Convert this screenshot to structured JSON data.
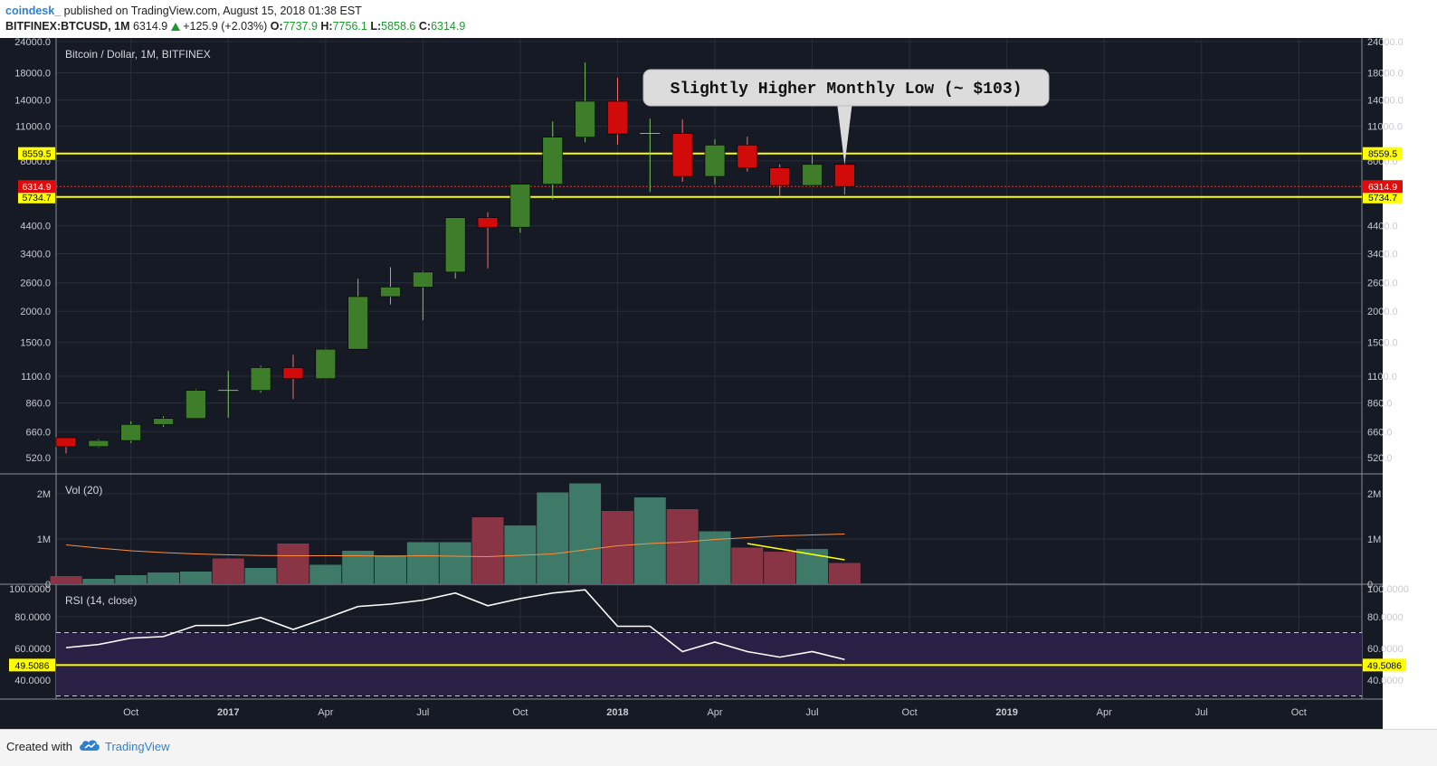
{
  "header": {
    "author": "coindesk_",
    "published": "published on TradingView.com, August 15, 2018 01:38 EST",
    "symbol": "BITFINEX:BTCUSD, 1M",
    "last": "6314.9",
    "change": "+125.9 (+2.03%)",
    "open_label": "O:",
    "open": "7737.9",
    "high_label": "H:",
    "high": "7756.1",
    "low_label": "L:",
    "low": "5858.6",
    "close_label": "C:",
    "close": "6314.9",
    "up_icon": "triangle-up-icon"
  },
  "footer": {
    "created_with": "Created with",
    "brand": "TradingView",
    "logo_icon": "tradingview-cloud-icon"
  },
  "colors": {
    "background": "#161a25",
    "grid": "#2a2e3a",
    "up": "#3e7d2a",
    "down": "#d10a0a",
    "vol_up": "#3e7a67",
    "vol_down": "#8a3545",
    "ma": "#ff8d3c",
    "level": "#ffff00",
    "rsi_line": "#ffffff",
    "rsi_band": "#2a1f45"
  },
  "chart_data": [
    {
      "type": "candlestick",
      "title": "Bitcoin / Dollar, 1M, BITFINEX",
      "scale": "log",
      "ylim": [
        470,
        24000
      ],
      "y_ticks": [
        "520.0",
        "660.0",
        "860.0",
        "1100.0",
        "1500.0",
        "2000.0",
        "2600.0",
        "3400.0",
        "4400.0",
        "5734.7",
        "6314.9",
        "8559.5",
        "11000.0",
        "14000.0",
        "18000.0",
        "24000.0"
      ],
      "plain_ticks": [
        520,
        660,
        860,
        1100,
        1500,
        2000,
        2600,
        3400,
        4400,
        8000,
        11000,
        14000,
        18000,
        24000
      ],
      "plain_tick_labels": [
        "520.0",
        "660.0",
        "860.0",
        "1100.0",
        "1500.0",
        "2000.0",
        "2600.0",
        "3400.0",
        "4400.0",
        "8000.0",
        "11000.0",
        "14000.0",
        "18000.0",
        "24000.0"
      ],
      "x_labels": [
        "Oct",
        "2017",
        "Apr",
        "Jul",
        "Oct",
        "2018",
        "Apr",
        "Jul",
        "Oct",
        "2019",
        "Apr",
        "Jul",
        "Oct"
      ],
      "x_label_months": [
        "2016-10",
        "2017-01",
        "2017-04",
        "2017-07",
        "2017-10",
        "2018-01",
        "2018-04",
        "2018-07",
        "2018-10",
        "2019-01",
        "2019-04",
        "2019-07",
        "2019-10"
      ],
      "x_bold": [
        "2017",
        "2018",
        "2019"
      ],
      "candles": [
        {
          "month": "2016-08",
          "o": 624,
          "h": 625,
          "l": 540,
          "c": 575
        },
        {
          "month": "2016-09",
          "o": 575,
          "h": 615,
          "l": 570,
          "c": 608
        },
        {
          "month": "2016-10",
          "o": 608,
          "h": 725,
          "l": 595,
          "c": 705
        },
        {
          "month": "2016-11",
          "o": 705,
          "h": 760,
          "l": 690,
          "c": 745
        },
        {
          "month": "2016-12",
          "o": 745,
          "h": 975,
          "l": 745,
          "c": 965
        },
        {
          "month": "2017-01",
          "o": 965,
          "h": 1155,
          "l": 750,
          "c": 965
        },
        {
          "month": "2017-02",
          "o": 965,
          "h": 1210,
          "l": 945,
          "c": 1190
        },
        {
          "month": "2017-03",
          "o": 1190,
          "h": 1340,
          "l": 890,
          "c": 1075
        },
        {
          "month": "2017-04",
          "o": 1075,
          "h": 1420,
          "l": 1075,
          "c": 1410
        },
        {
          "month": "2017-05",
          "o": 1410,
          "h": 2700,
          "l": 1410,
          "c": 2290
        },
        {
          "month": "2017-06",
          "o": 2290,
          "h": 3000,
          "l": 2130,
          "c": 2500
        },
        {
          "month": "2017-07",
          "o": 2500,
          "h": 2900,
          "l": 1840,
          "c": 2870
        },
        {
          "month": "2017-08",
          "o": 2870,
          "h": 4750,
          "l": 2700,
          "c": 4740
        },
        {
          "month": "2017-09",
          "o": 4740,
          "h": 4980,
          "l": 2970,
          "c": 4340
        },
        {
          "month": "2017-10",
          "o": 4340,
          "h": 6450,
          "l": 4120,
          "c": 6450
        },
        {
          "month": "2017-11",
          "o": 6450,
          "h": 11500,
          "l": 5600,
          "c": 9950
        },
        {
          "month": "2017-12",
          "o": 9950,
          "h": 19800,
          "l": 9500,
          "c": 13850
        },
        {
          "month": "2018-01",
          "o": 13850,
          "h": 17200,
          "l": 9300,
          "c": 10250
        },
        {
          "month": "2018-02",
          "o": 10250,
          "h": 11800,
          "l": 6000,
          "c": 10300
        },
        {
          "month": "2018-03",
          "o": 10300,
          "h": 11700,
          "l": 6600,
          "c": 6930
        },
        {
          "month": "2018-04",
          "o": 6930,
          "h": 9750,
          "l": 6450,
          "c": 9250
        },
        {
          "month": "2018-05",
          "o": 9250,
          "h": 10000,
          "l": 7250,
          "c": 7500
        },
        {
          "month": "2018-06",
          "o": 7500,
          "h": 7750,
          "l": 5750,
          "c": 6380
        },
        {
          "month": "2018-07",
          "o": 6380,
          "h": 8450,
          "l": 6360,
          "c": 7740
        },
        {
          "month": "2018-08",
          "o": 7740,
          "h": 7760,
          "l": 5860,
          "c": 6315
        }
      ],
      "levels": [
        {
          "value": 8559.5,
          "label": "8559.5"
        },
        {
          "value": 5734.7,
          "label": "5734.7"
        }
      ],
      "last_price": {
        "value": 6314.9,
        "label": "6314.9"
      },
      "annotation": {
        "text": "Slightly Higher Monthly Low (~ $103)",
        "month": "2018-08",
        "value": 5860
      }
    },
    {
      "type": "bar",
      "title": "Vol (20)",
      "ylim": [
        0,
        2300000
      ],
      "y_ticks": [
        0,
        1000000,
        2000000
      ],
      "y_tick_labels": [
        "0",
        "1M",
        "2M"
      ],
      "volumes": [
        {
          "month": "2016-08",
          "v": 180000,
          "up": false
        },
        {
          "month": "2016-09",
          "v": 120000,
          "up": true
        },
        {
          "month": "2016-10",
          "v": 200000,
          "up": true
        },
        {
          "month": "2016-11",
          "v": 260000,
          "up": true
        },
        {
          "month": "2016-12",
          "v": 280000,
          "up": true
        },
        {
          "month": "2017-01",
          "v": 570000,
          "up": false
        },
        {
          "month": "2017-02",
          "v": 360000,
          "up": true
        },
        {
          "month": "2017-03",
          "v": 900000,
          "up": false
        },
        {
          "month": "2017-04",
          "v": 430000,
          "up": true
        },
        {
          "month": "2017-05",
          "v": 740000,
          "up": true
        },
        {
          "month": "2017-06",
          "v": 640000,
          "up": true
        },
        {
          "month": "2017-07",
          "v": 930000,
          "up": true
        },
        {
          "month": "2017-08",
          "v": 930000,
          "up": true
        },
        {
          "month": "2017-09",
          "v": 1480000,
          "up": false
        },
        {
          "month": "2017-10",
          "v": 1300000,
          "up": true
        },
        {
          "month": "2017-11",
          "v": 2030000,
          "up": true
        },
        {
          "month": "2017-12",
          "v": 2230000,
          "up": true
        },
        {
          "month": "2018-01",
          "v": 1620000,
          "up": false
        },
        {
          "month": "2018-02",
          "v": 1920000,
          "up": true
        },
        {
          "month": "2018-03",
          "v": 1660000,
          "up": false
        },
        {
          "month": "2018-04",
          "v": 1170000,
          "up": true
        },
        {
          "month": "2018-05",
          "v": 810000,
          "up": false
        },
        {
          "month": "2018-06",
          "v": 720000,
          "up": false
        },
        {
          "month": "2018-07",
          "v": 780000,
          "up": true
        },
        {
          "month": "2018-08",
          "v": 470000,
          "up": false
        }
      ],
      "ma": [
        870000,
        800000,
        740000,
        700000,
        670000,
        650000,
        635000,
        630000,
        630000,
        630000,
        620000,
        630000,
        620000,
        610000,
        640000,
        670000,
        760000,
        850000,
        900000,
        930000,
        990000,
        1030000,
        1070000,
        1090000,
        1110000
      ],
      "trend_line": [
        {
          "month": "2018-05",
          "v": 900000
        },
        {
          "month": "2018-08",
          "v": 540000
        }
      ]
    },
    {
      "type": "line",
      "title": "RSI (14, close)",
      "ylim": [
        28,
        100
      ],
      "y_ticks": [
        40,
        60,
        80,
        100
      ],
      "y_tick_labels": [
        "40.0000",
        "60.0000",
        "80.0000",
        "100.0000"
      ],
      "band": [
        30,
        70
      ],
      "rsi": [
        60.5,
        62.5,
        66.5,
        67.5,
        74.5,
        74.5,
        79.5,
        72,
        79,
        86.5,
        88,
        90.5,
        95,
        87,
        91.5,
        95,
        97,
        74,
        74,
        58,
        64,
        58,
        54.5,
        58,
        53
      ],
      "level": {
        "value": 49.5086,
        "label": "49.5086"
      }
    }
  ]
}
